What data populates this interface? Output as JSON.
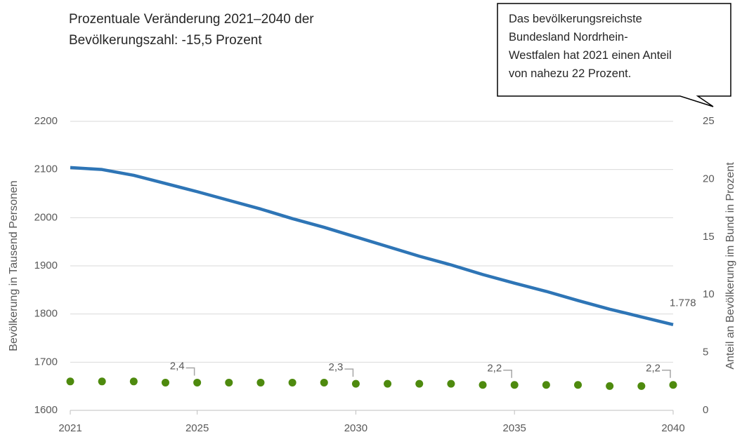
{
  "chart_data": {
    "type": "line",
    "title": [
      "Prozentuale Veränderung 2021–2040 der",
      "Bevölkerungszahl: -15,5 Prozent"
    ],
    "annotation": [
      "Das bevölkerungsreichste",
      "Bundesland Nordrhein-",
      "Westfalen hat 2021 einen Anteil",
      "von nahezu 22 Prozent."
    ],
    "y_label": "Bevölkerung in Tausend Personen",
    "y2_label": "Anteil an Bevölkerung im Bund in Prozent",
    "x": [
      2021,
      2022,
      2023,
      2024,
      2025,
      2026,
      2027,
      2028,
      2029,
      2030,
      2031,
      2032,
      2033,
      2034,
      2035,
      2036,
      2037,
      2038,
      2039,
      2040
    ],
    "series": [
      {
        "type": "line",
        "color": "#2e75b6",
        "values": [
          2104,
          2100,
          2088,
          2071,
          2054,
          2036,
          2018,
          1998,
          1980,
          1960,
          1940,
          1920,
          1902,
          1882,
          1864,
          1847,
          1828,
          1810,
          1794,
          1778
        ],
        "value_labels": [
          null,
          null,
          null,
          null,
          null,
          null,
          null,
          null,
          null,
          null,
          null,
          null,
          null,
          null,
          null,
          null,
          null,
          null,
          null,
          "1.778"
        ]
      },
      {
        "type": "scatter",
        "color": "#4e8a0e",
        "axis": "y2",
        "values": [
          2.5,
          2.5,
          2.5,
          2.4,
          2.4,
          2.4,
          2.4,
          2.4,
          2.4,
          2.3,
          2.3,
          2.3,
          2.3,
          2.2,
          2.2,
          2.2,
          2.2,
          2.1,
          2.1,
          2.2
        ],
        "value_labels": [
          null,
          null,
          null,
          null,
          "2,4",
          null,
          null,
          null,
          null,
          "2,3",
          null,
          null,
          null,
          null,
          "2,2",
          null,
          null,
          null,
          null,
          "2,2"
        ]
      }
    ],
    "xlim": [
      2021,
      2040
    ],
    "xticks": [
      2021,
      2025,
      2030,
      2035,
      2040
    ],
    "ylim": [
      1600,
      2200
    ],
    "yticks": [
      1600,
      1700,
      1800,
      1900,
      2000,
      2100,
      2200
    ],
    "y2lim": [
      0,
      25
    ],
    "y2ticks": [
      0,
      5,
      10,
      15,
      20,
      25
    ],
    "grid": true
  }
}
